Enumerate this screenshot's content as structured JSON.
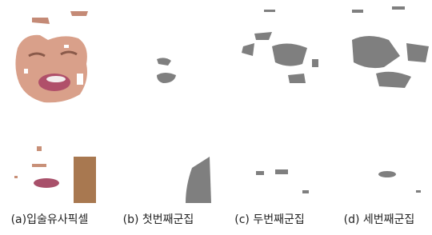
{
  "captions": [
    "(a)입술유사픽셀",
    "(b) 첫번째군집",
    "(c) 두번째군집",
    "(d) 세번째군집"
  ]
}
